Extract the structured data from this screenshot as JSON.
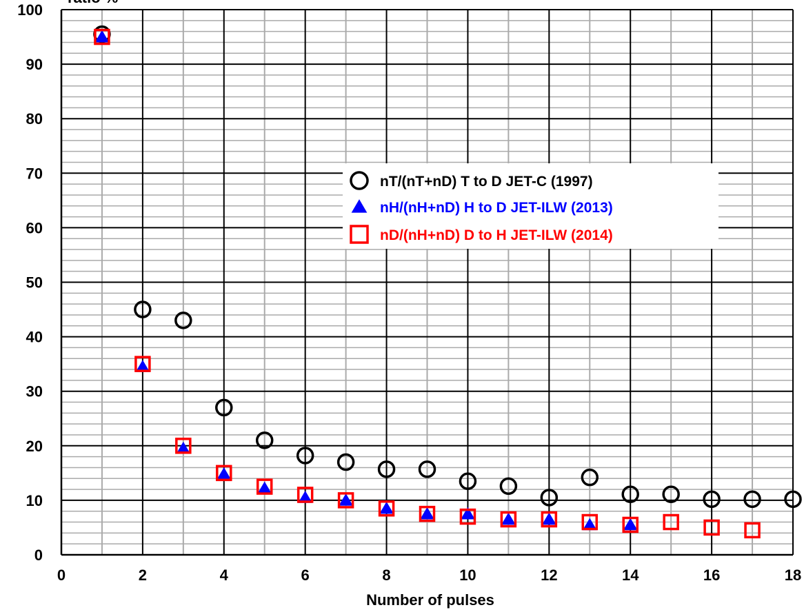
{
  "chart_data": {
    "type": "scatter",
    "title": "",
    "xlabel": "Number of pulses",
    "ylabel": "ratio %",
    "xlim": [
      0,
      18
    ],
    "ylim": [
      0,
      100
    ],
    "x_major_ticks": [
      0,
      2,
      4,
      6,
      8,
      10,
      12,
      14,
      16,
      18
    ],
    "y_major_ticks": [
      0,
      10,
      20,
      30,
      40,
      50,
      60,
      70,
      80,
      90,
      100
    ],
    "grid": true,
    "legend_position": "center-right",
    "series": [
      {
        "name": "nT/(nT+nD)  T to D   JET-C (1997)",
        "marker": "circle-open",
        "color": "#000000",
        "x": [
          1,
          2,
          3,
          4,
          5,
          6,
          7,
          8,
          9,
          10,
          11,
          12,
          13,
          14,
          15,
          16,
          17,
          18
        ],
        "y": [
          95.5,
          45,
          43,
          27,
          21,
          18.2,
          17,
          15.7,
          15.7,
          13.5,
          12.6,
          10.5,
          14.2,
          11.1,
          11.1,
          10.2,
          10.2,
          10.2
        ]
      },
      {
        "name": "nH/(nH+nD) H to D  JET-ILW (2013)",
        "marker": "triangle-filled",
        "color": "#0000ff",
        "x": [
          1,
          2,
          3,
          4,
          5,
          6,
          7,
          8,
          9,
          10,
          11,
          12,
          13,
          14
        ],
        "y": [
          95,
          34.5,
          19.5,
          14.8,
          12.2,
          10.5,
          10,
          8.5,
          7.5,
          7.5,
          6.5,
          6.5,
          5.5,
          5.5
        ]
      },
      {
        "name": "nD/(nH+nD) D to H  JET-ILW (2014)",
        "marker": "square-open",
        "color": "#ff0000",
        "x": [
          1,
          2,
          3,
          4,
          5,
          6,
          7,
          8,
          9,
          10,
          11,
          12,
          13,
          14,
          15,
          16,
          17
        ],
        "y": [
          95,
          35,
          20,
          15,
          12.5,
          11,
          10,
          8.5,
          7.5,
          7,
          6.5,
          6.5,
          6,
          5.5,
          6,
          5,
          4.5
        ]
      }
    ]
  }
}
